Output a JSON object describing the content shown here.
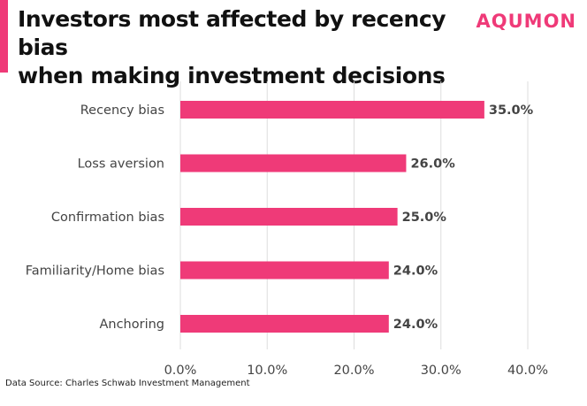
{
  "title_line1": "Investors most affected by recency bias",
  "title_line2": "when making investment decisions",
  "brand": "AQUMON",
  "source": "Data Source: Charles Schwab Investment Management",
  "colors": {
    "accent": "#ef3a78",
    "grid": "#dddddd",
    "text": "#444444"
  },
  "chart_data": {
    "type": "bar",
    "orientation": "horizontal",
    "title": "Investors most affected by recency bias when making investment decisions",
    "categories": [
      "Recency bias",
      "Loss aversion",
      "Confirmation bias",
      "Familiarity/Home bias",
      "Anchoring"
    ],
    "values": [
      35.0,
      26.0,
      25.0,
      24.0,
      24.0
    ],
    "value_labels": [
      "35.0%",
      "26.0%",
      "25.0%",
      "24.0%",
      "24.0%"
    ],
    "xlim": [
      0,
      40
    ],
    "xticks": [
      0,
      10,
      20,
      30,
      40
    ],
    "xtick_labels": [
      "0.0%",
      "10.0%",
      "20.0%",
      "30.0%",
      "40.0%"
    ],
    "xlabel": "",
    "ylabel": "",
    "grid": true,
    "legend": "none"
  }
}
